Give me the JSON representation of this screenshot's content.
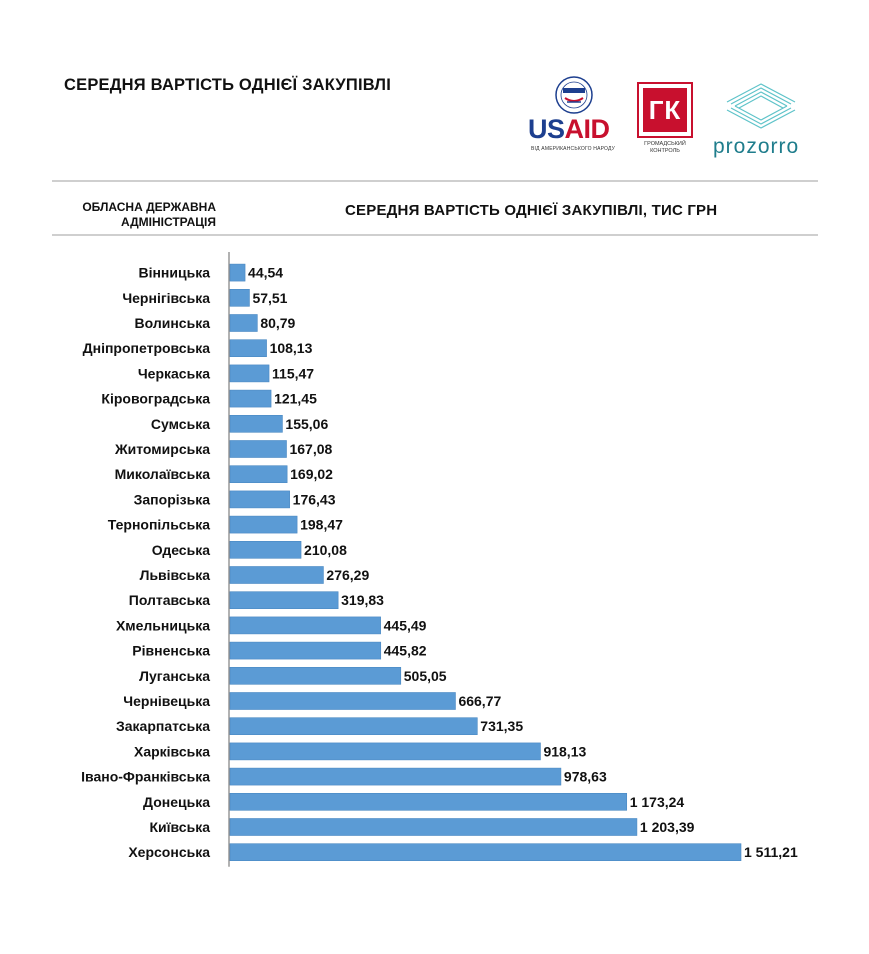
{
  "header": {
    "title": "СЕРЕДНЯ ВАРТІСТЬ ОДНІЄЇ ЗАКУПІВЛІ",
    "column_left": "ОБЛАСНА ДЕРЖАВНА АДМІНІСТРАЦІЯ",
    "column_right": "СЕРЕДНЯ ВАРТІСТЬ ОДНІЄЇ ЗАКУПІВЛІ, ТИС ГРН"
  },
  "logos": {
    "usaid": "USAID",
    "usaid_sub": "ВІД АМЕРИКАНСЬКОГО НАРОДУ",
    "gk": "ГК",
    "gk_sub": "ГРОМАДСЬКИЙ КОНТРОЛЬ",
    "prozorro": "prozorro"
  },
  "colors": {
    "bar": "#5b9bd5",
    "bar_edge": "#4a88c2",
    "usaid_blue": "#1d3f8f",
    "usaid_red": "#c8102e",
    "prozorro_teal": "#1f7d8c"
  },
  "chart_data": {
    "type": "bar",
    "orientation": "horizontal",
    "categories": [
      "Вінницька",
      "Чернігівська",
      "Волинська",
      "Дніпропетровська",
      "Черкаська",
      "Кіровоградська",
      "Сумська",
      "Житомирська",
      "Миколаївська",
      "Запорізька",
      "Тернопільська",
      "Одеська",
      "Львівська",
      "Полтавська",
      "Хмельницька",
      "Рівненська",
      "Луганська",
      "Чернівецька",
      "Закарпатська",
      "Харківська",
      "Івано-Франківська",
      "Донецька",
      "Київська",
      "Херсонська"
    ],
    "values": [
      44.54,
      57.51,
      80.79,
      108.13,
      115.47,
      121.45,
      155.06,
      167.08,
      169.02,
      176.43,
      198.47,
      210.08,
      276.29,
      319.83,
      445.49,
      445.82,
      505.05,
      666.77,
      731.35,
      918.13,
      978.63,
      1173.24,
      1203.39,
      1511.21
    ],
    "value_labels": [
      "44,54",
      "57,51",
      "80,79",
      "108,13",
      "115,47",
      "121,45",
      "155,06",
      "167,08",
      "169,02",
      "176,43",
      "198,47",
      "210,08",
      "276,29",
      "319,83",
      "445,49",
      "445,82",
      "505,05",
      "666,77",
      "731,35",
      "918,13",
      "978,63",
      "1 173,24",
      "1 203,39",
      "1 511,21"
    ],
    "title": "СЕРЕДНЯ ВАРТІСТЬ ОДНІЄЇ ЗАКУПІВЛІ",
    "xlabel": "СЕРЕДНЯ ВАРТІСТЬ ОДНІЄЇ ЗАКУПІВЛІ, ТИС ГРН",
    "ylabel": "ОБЛАСНА ДЕРЖАВНА АДМІНІСТРАЦІЯ",
    "xlim": [
      0,
      1511.21
    ],
    "grid": false,
    "legend": "none"
  }
}
